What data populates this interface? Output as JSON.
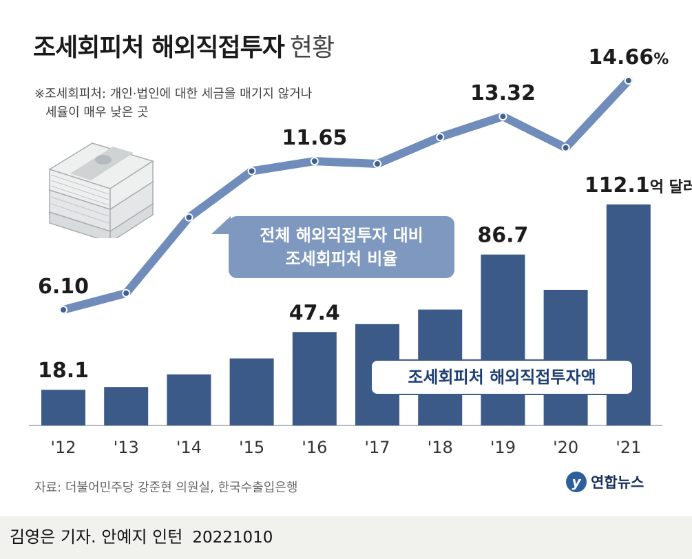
{
  "title": {
    "main": "조세회피처 해외직접투자",
    "sub": "현황"
  },
  "note": {
    "line1": "※조세회피처: 개인·법인에 대한 세금을 매기지 않거나",
    "line2": "세율이 매우 낮은 곳"
  },
  "callouts": {
    "ratio_line1": "전체 해외직접투자 대비",
    "ratio_line2": "조세회피처 비율",
    "amount": "조세회피처 해외직접투자액"
  },
  "source": "자료: 더불어민주당 강준현 의원실, 한국수출입은행",
  "logo": {
    "mark": "y",
    "text": "연합뉴스"
  },
  "credit": {
    "text": "김영은 기자. 안예지 인턴",
    "date": "20221010"
  },
  "chart_data": {
    "type": "bar+line",
    "title": "조세회피처 해외직접투자 현황",
    "categories": [
      "'12",
      "'13",
      "'14",
      "'15",
      "'16",
      "'17",
      "'18",
      "'19",
      "'20",
      "'21"
    ],
    "bars": {
      "name": "조세회피처 해외직접투자액",
      "unit": "억 달러",
      "values": [
        18.1,
        19.5,
        25.9,
        34.0,
        47.4,
        51.4,
        58.8,
        86.7,
        68.8,
        112.1
      ],
      "labeled": {
        "0": "18.1",
        "4": "47.4",
        "7": "86.7",
        "9": "112.1"
      },
      "last_unit_label": "억 달러",
      "color": "#3b5a87",
      "ylim": [
        0,
        112.1
      ]
    },
    "line": {
      "name": "전체 해외직접투자 대비 조세회피처 비율",
      "unit": "%",
      "values": [
        6.1,
        6.72,
        9.55,
        11.28,
        11.65,
        11.55,
        12.55,
        13.32,
        12.15,
        14.66
      ],
      "labeled": {
        "0": "6.10",
        "4": "11.65",
        "7": "13.32",
        "9": "14.66"
      },
      "last_unit_label": "%",
      "color": "#6f8cba",
      "ylim": [
        6.1,
        14.66
      ]
    }
  }
}
